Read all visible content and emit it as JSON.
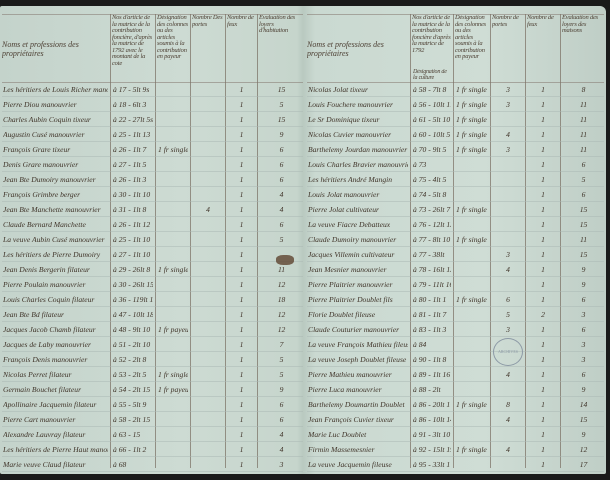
{
  "left_page": {
    "headers": [
      "Noms et professions des propriétaires",
      "Nos d'article de la matrice de la contribution foncière, d'après la matrice de 1792 avec le montant de la cote",
      "Désignation des colonnes ou des articles soumis à la contribution en payeur",
      "Nombre Des portes",
      "Nombre de feux",
      "Évaluation des loyers d'habitation"
    ],
    "rows": [
      [
        "Les héritiers de Louis Richer manouvrier",
        "à 17 - 5lt 9s",
        "",
        "",
        "1",
        "15"
      ],
      [
        "Pierre Diou manouvrier",
        "à 18 - 6lt 3",
        "",
        "",
        "1",
        "5"
      ],
      [
        "Charles Aubin Coquin tixeur",
        "à 22 - 27lt 5s",
        "",
        "",
        "1",
        "15"
      ],
      [
        "Augustin Cusé manouvrier",
        "à 25 - 1lt 13",
        "",
        "",
        "1",
        "9"
      ],
      [
        "François Grare tixeur",
        "à 26 - 1lt 7",
        "1 fr single",
        "",
        "1",
        "6"
      ],
      [
        "Denis Grare manouvrier",
        "à 27 - 1lt 5",
        "",
        "",
        "1",
        "6"
      ],
      [
        "Jean Bte Dumoiry manouvrier",
        "à 26 - 1lt 3",
        "",
        "",
        "1",
        "6"
      ],
      [
        "François Grimbre berger",
        "à 30 - 1lt 10",
        "",
        "",
        "1",
        "4"
      ],
      [
        "Jean Bte Manchette manouvrier",
        "à 31 - 1lt 8",
        "",
        "4",
        "1",
        "4"
      ],
      [
        "Claude Bernard Manchette",
        "à 26 - 1lt 12",
        "",
        "",
        "1",
        "6"
      ],
      [
        "La veuve Aubin Cusé manouvrier",
        "à 25 - 1lt 10",
        "",
        "",
        "1",
        "5"
      ],
      [
        "Les héritiers de Pierre Dumoiry",
        "à 27 - 1lt 10",
        "",
        "",
        "1",
        ""
      ],
      [
        "Jean Denis Bergerin filateur",
        "à 29 - 26lt 8",
        "1 fr single",
        "",
        "1",
        "11"
      ],
      [
        "Pierre Poulain manouvrier",
        "à 30 - 26lt 15",
        "",
        "",
        "1",
        "12"
      ],
      [
        "Louis Charles Coquin filateur",
        "à 36 - 119lt 12",
        "",
        "",
        "1",
        "18"
      ],
      [
        "Jean Bte Bd filateur",
        "à 47 - 10lt 18",
        "",
        "",
        "1",
        "12"
      ],
      [
        "Jacques Jacob Chamb filateur",
        "à 48 - 9lt 10",
        "1 fr payeur",
        "",
        "1",
        "12"
      ],
      [
        "Jacques de Laby manouvrier",
        "à 51 - 2lt 10",
        "",
        "",
        "1",
        "7"
      ],
      [
        "François Denis manouvrier",
        "à 52 - 2lt 8",
        "",
        "",
        "1",
        "5"
      ],
      [
        "Nicolas Perret filateur",
        "à 53 - 2lt 5",
        "1 fr single",
        "",
        "1",
        "5"
      ],
      [
        "Germain Bouchet filateur",
        "à 54 - 2lt 15",
        "1 fr payeur 3",
        "",
        "1",
        "9"
      ],
      [
        "Apollinaire Jacquemin filateur",
        "à 55 - 5lt 9",
        "",
        "",
        "1",
        "6"
      ],
      [
        "Pierre Cart manouvrier",
        "à 58 - 2lt 15",
        "",
        "",
        "1",
        "6"
      ],
      [
        "Alexandre Lauvray filateur",
        "à 63 - 15",
        "",
        "",
        "1",
        "4"
      ],
      [
        "Les héritiers de Pierre Haut manouvrier",
        "à 66 - 1lt 2",
        "",
        "",
        "1",
        "4"
      ],
      [
        "Marie veuve Claud filateur",
        "à 68",
        "",
        "",
        "1",
        "3"
      ]
    ]
  },
  "right_page": {
    "headers": [
      "Noms et professions des propriétaires",
      "Nos d'article de la matrice de la contribution foncière d'après la matrice de 1792",
      "Désignation des colonnes ou des articles soumis à la contribution en payeur",
      "Nombre de portes",
      "Nombre de feux",
      "Évaluation des loyers des maisons"
    ],
    "subheader": "Désignation de la culture",
    "rows": [
      [
        "Nicolas Jolat tixeur",
        "à 58 - 7lt 8",
        "1 fr single",
        "3",
        "1",
        "8"
      ],
      [
        "Louis Fouchere manouvrier",
        "à 56 - 10lt 17",
        "1 fr single",
        "3",
        "1",
        "11"
      ],
      [
        "Le Sr Dominique tixeur",
        "à 61 - 5lt 10",
        "1 fr single",
        "",
        "1",
        "11"
      ],
      [
        "Nicolas Cuvier manouvrier",
        "à 60 - 10lt 5",
        "1 fr single",
        "4",
        "1",
        "11"
      ],
      [
        "Barthelemy Jourdan manouvrier",
        "à 70 - 9lt 5",
        "1 fr single",
        "3",
        "1",
        "11"
      ],
      [
        "Louis Charles Bravier manouvrier",
        "à 73",
        "",
        "",
        "1",
        "6"
      ],
      [
        "Les héritiers André Mangin",
        "à 75 - 4lt 5",
        "",
        "",
        "1",
        "5"
      ],
      [
        "Louis Jolat manouvrier",
        "à 74 - 5lt 8",
        "",
        "",
        "1",
        "6"
      ],
      [
        "Pierre Jolat cultivateur",
        "à 73 - 26lt 7",
        "1 fr single",
        "",
        "1",
        "15"
      ],
      [
        "La veuve Fiacre Debatteux",
        "à 76 - 12lt 13",
        "",
        "",
        "1",
        "15"
      ],
      [
        "Claude Dumoiry manouvrier",
        "à 77 - 8lt 10",
        "1 fr single",
        "",
        "1",
        "11"
      ],
      [
        "Jacques Villemin cultivateur",
        "à 77 - 38lt",
        "",
        "3",
        "1",
        "15"
      ],
      [
        "Jean Mesnier manouvrier",
        "à 78 - 16lt 13",
        "",
        "4",
        "1",
        "9"
      ],
      [
        "Pierre Plaitrier manouvrier",
        "à 79 - 11lt 16",
        "",
        "",
        "1",
        "9"
      ],
      [
        "Pierre Plaitrier Doublet fils",
        "à 80 - 1lt 1",
        "1 fr single",
        "6",
        "1",
        "6"
      ],
      [
        "Florie Doublet fileuse",
        "à 81 - 1lt 7",
        "",
        "5",
        "2",
        "3"
      ],
      [
        "Claude Couturier manouvrier",
        "à 83 - 1lt 3",
        "",
        "3",
        "1",
        "6"
      ],
      [
        "La veuve François Mathieu fileuse",
        "à 84",
        "",
        "",
        "1",
        "3"
      ],
      [
        "La veuve Joseph Doublet fileuse",
        "à 90 - 1lt 8",
        "",
        "",
        "1",
        "3"
      ],
      [
        "Pierre Mathieu manouvrier",
        "à 89 - 1lt 16",
        "",
        "4",
        "1",
        "6"
      ],
      [
        "Pierre Luca manouvrier",
        "à 88 - 2lt",
        "",
        "",
        "1",
        "9"
      ],
      [
        "Barthelemy Doumartin Doublet",
        "à 86 - 20lt 1",
        "1 fr single",
        "8",
        "1",
        "14"
      ],
      [
        "Jean François Cuvier tixeur",
        "à 86 - 10lt 14",
        "",
        "4",
        "1",
        "15"
      ],
      [
        "Marie Luc Doublet",
        "à 91 - 3lt 10",
        "",
        "",
        "1",
        "9"
      ],
      [
        "Firmin Massemesnier",
        "à 92 - 15lt 19",
        "1 fr single",
        "4",
        "1",
        "12"
      ],
      [
        "La veuve Jacquemin fileuse",
        "à 95 - 33lt 1",
        "",
        "",
        "1",
        "17"
      ]
    ]
  },
  "stamp_text": "ARCHIVES"
}
